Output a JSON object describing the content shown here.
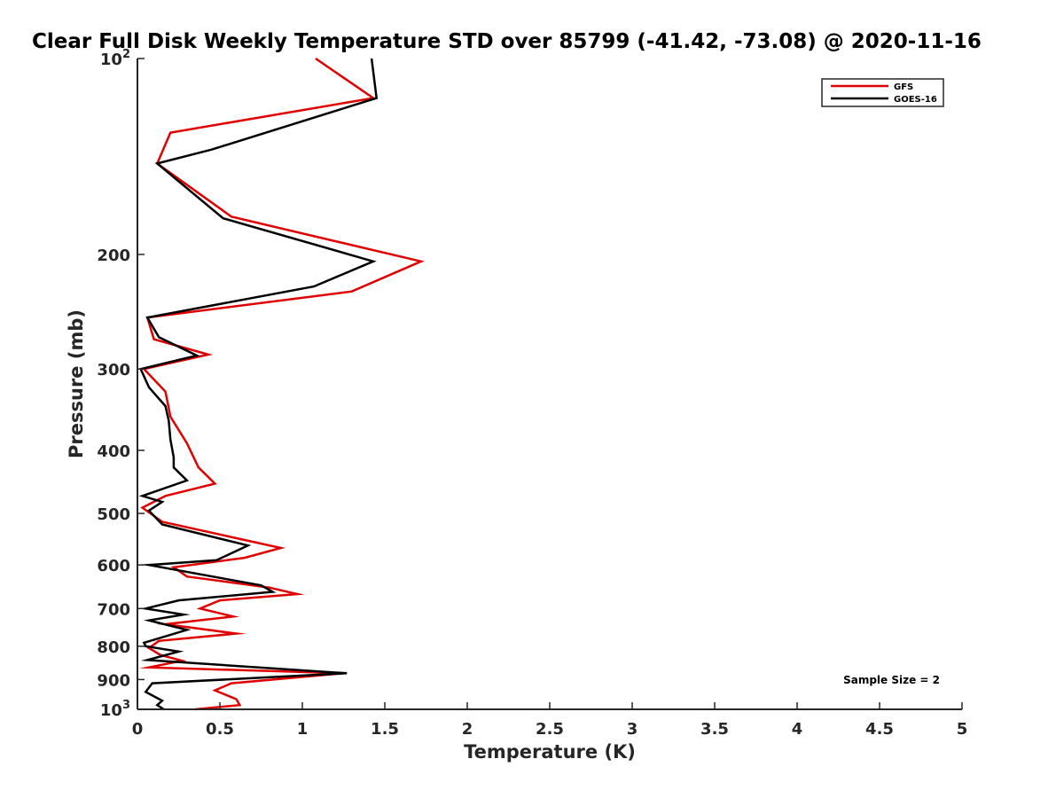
{
  "chart_data": {
    "type": "line",
    "title": "Clear Full Disk Weekly Temperature STD over 85799 (-41.42, -73.08) @ 2020-11-16",
    "xlabel": "Temperature (K)",
    "ylabel": "Pressure (mb)",
    "xlim": [
      0,
      5
    ],
    "ylim": [
      100,
      1000
    ],
    "yscale": "log",
    "yreversed": true,
    "grid": false,
    "x_ticks": [
      0,
      0.5,
      1,
      1.5,
      2,
      2.5,
      3,
      3.5,
      4,
      4.5,
      5
    ],
    "x_tick_labels": [
      "0",
      "0.5",
      "1",
      "1.5",
      "2",
      "2.5",
      "3",
      "3.5",
      "4",
      "4.5",
      "5"
    ],
    "y_ticks": [
      100,
      200,
      300,
      400,
      500,
      600,
      700,
      800,
      900,
      1000
    ],
    "y_tick_labels": [
      {
        "base": "10",
        "exp": "2"
      },
      {
        "base": "200",
        "exp": ""
      },
      {
        "base": "300",
        "exp": ""
      },
      {
        "base": "400",
        "exp": ""
      },
      {
        "base": "500",
        "exp": ""
      },
      {
        "base": "600",
        "exp": ""
      },
      {
        "base": "700",
        "exp": ""
      },
      {
        "base": "800",
        "exp": ""
      },
      {
        "base": "900",
        "exp": ""
      },
      {
        "base": "10",
        "exp": "3"
      }
    ],
    "legend_position": "top-right",
    "annotation": "Sample Size = 2",
    "series": [
      {
        "name": "GFS",
        "color": "#e00000",
        "points": [
          [
            1.08,
            100
          ],
          [
            1.43,
            115
          ],
          [
            0.2,
            130
          ],
          [
            0.12,
            145
          ],
          [
            0.57,
            175
          ],
          [
            1.72,
            205
          ],
          [
            1.3,
            228
          ],
          [
            0.06,
            250
          ],
          [
            0.1,
            270
          ],
          [
            0.43,
            285
          ],
          [
            0.04,
            300
          ],
          [
            0.17,
            325
          ],
          [
            0.2,
            355
          ],
          [
            0.3,
            390
          ],
          [
            0.37,
            425
          ],
          [
            0.47,
            450
          ],
          [
            0.17,
            470
          ],
          [
            0.03,
            490
          ],
          [
            0.15,
            515
          ],
          [
            0.87,
            565
          ],
          [
            0.65,
            585
          ],
          [
            0.22,
            605
          ],
          [
            0.3,
            625
          ],
          [
            0.8,
            650
          ],
          [
            0.97,
            665
          ],
          [
            0.5,
            680
          ],
          [
            0.38,
            700
          ],
          [
            0.58,
            720
          ],
          [
            0.17,
            740
          ],
          [
            0.6,
            765
          ],
          [
            0.13,
            785
          ],
          [
            0.07,
            805
          ],
          [
            0.14,
            825
          ],
          [
            0.27,
            842
          ],
          [
            0.07,
            862
          ],
          [
            1.25,
            880
          ],
          [
            0.57,
            912
          ],
          [
            0.47,
            935
          ],
          [
            0.6,
            965
          ],
          [
            0.62,
            985
          ],
          [
            0.35,
            1000
          ]
        ]
      },
      {
        "name": "GOES-16",
        "color": "#000000",
        "points": [
          [
            1.42,
            100
          ],
          [
            1.45,
            115
          ],
          [
            0.45,
            138
          ],
          [
            0.12,
            145
          ],
          [
            0.52,
            176
          ],
          [
            1.43,
            205
          ],
          [
            1.07,
            224
          ],
          [
            0.06,
            250
          ],
          [
            0.13,
            268
          ],
          [
            0.36,
            286
          ],
          [
            0.02,
            300
          ],
          [
            0.07,
            320
          ],
          [
            0.17,
            342
          ],
          [
            0.19,
            360
          ],
          [
            0.2,
            385
          ],
          [
            0.22,
            410
          ],
          [
            0.22,
            425
          ],
          [
            0.3,
            445
          ],
          [
            0.03,
            470
          ],
          [
            0.15,
            480
          ],
          [
            0.07,
            495
          ],
          [
            0.15,
            520
          ],
          [
            0.67,
            560
          ],
          [
            0.48,
            590
          ],
          [
            0.07,
            600
          ],
          [
            0.75,
            645
          ],
          [
            0.82,
            660
          ],
          [
            0.25,
            680
          ],
          [
            0.05,
            700
          ],
          [
            0.28,
            715
          ],
          [
            0.07,
            730
          ],
          [
            0.3,
            755
          ],
          [
            0.04,
            790
          ],
          [
            0.05,
            800
          ],
          [
            0.25,
            815
          ],
          [
            0.06,
            840
          ],
          [
            1.27,
            880
          ],
          [
            0.09,
            912
          ],
          [
            0.05,
            940
          ],
          [
            0.15,
            970
          ],
          [
            0.12,
            985
          ],
          [
            0.16,
            1000
          ]
        ]
      }
    ]
  }
}
